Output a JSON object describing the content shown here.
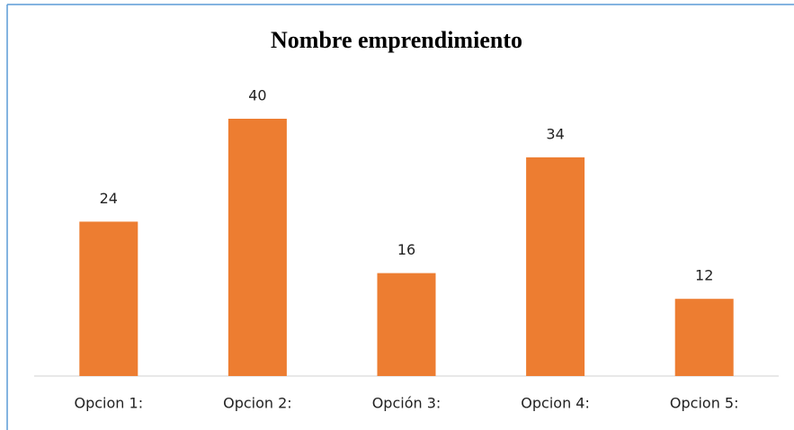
{
  "chart_data": {
    "type": "bar",
    "title": "Nombre emprendimiento",
    "categories": [
      "Opcion 1:",
      "Opcion 2:",
      "Opción 3:",
      "Opcion 4:",
      "Opcion 5:"
    ],
    "values": [
      24,
      40,
      16,
      34,
      12
    ],
    "color": "#ed7d31"
  }
}
